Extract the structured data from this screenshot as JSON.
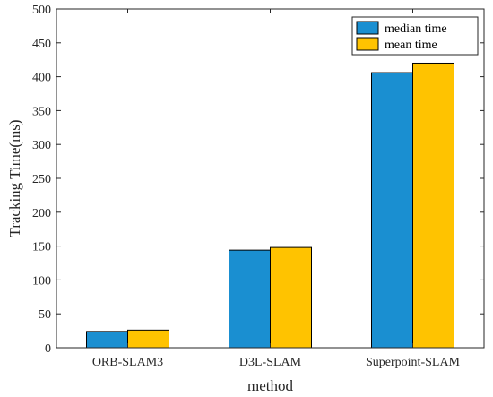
{
  "chart_data": {
    "type": "bar",
    "categories": [
      "ORB-SLAM3",
      "D3L-SLAM",
      "Superpoint-SLAM"
    ],
    "series": [
      {
        "name": "median time",
        "values": [
          24,
          144,
          406
        ],
        "color": "#1a8fd1"
      },
      {
        "name": "mean time",
        "values": [
          26,
          148,
          420
        ],
        "color": "#ffc300"
      }
    ],
    "xlabel": "method",
    "ylabel": "Tracking Time(ms)",
    "ylim": [
      0,
      500
    ],
    "yticks": [
      0,
      50,
      100,
      150,
      200,
      250,
      300,
      350,
      400,
      450,
      500
    ],
    "legend_position": "top-right",
    "grid": false,
    "box": true
  }
}
